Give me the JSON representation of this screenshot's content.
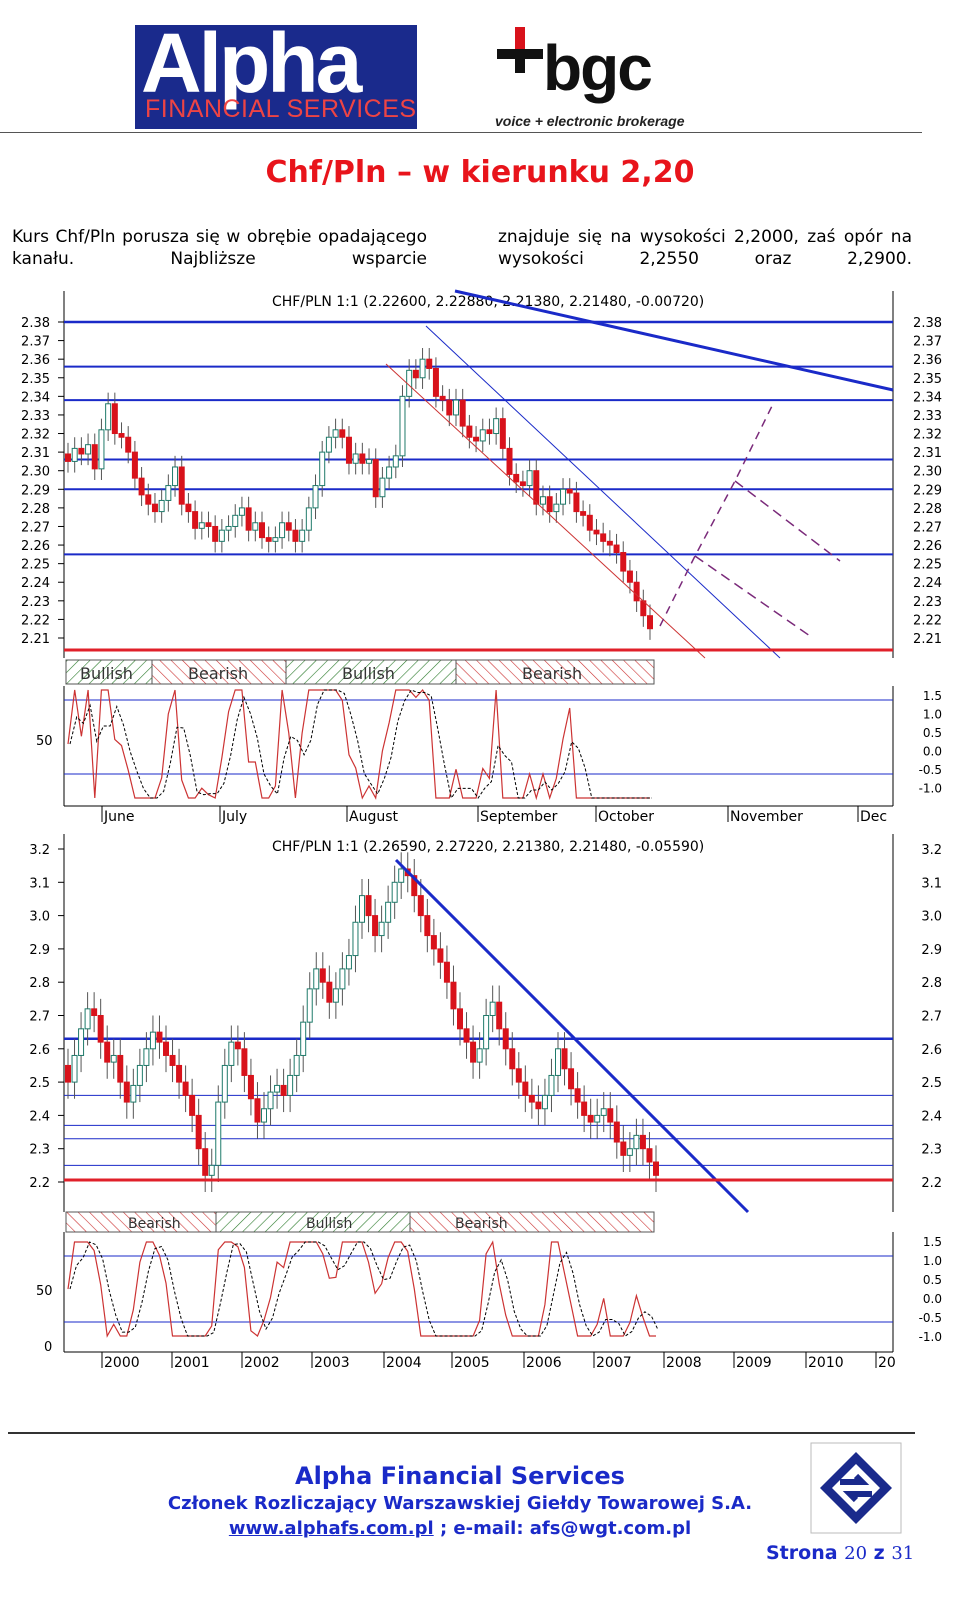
{
  "logos": {
    "alpha_big": "Alpha",
    "alpha_small": "FINANCIAL SERVICES",
    "bgc_word": "bgc",
    "bgc_tagline": "voice + electronic brokerage"
  },
  "title": "Chf/Pln – w kierunku 2,20",
  "body": {
    "col1": "Kurs Chf/Pln porusza się w obrębie opadającego kanału. Najbliższe wsparcie",
    "col2": "znajduje się na wysokości 2,2000, zaś opór na wysokości 2,2550 oraz 2,2900."
  },
  "chart_data": [
    {
      "type": "candlestick",
      "header": "CHF/PLN 1:1 (2.22600, 2.22880, 2.21380, 2.21480, -0.00720)",
      "y_ticks": [
        "2.38",
        "2.37",
        "2.36",
        "2.35",
        "2.34",
        "2.33",
        "2.32",
        "2.31",
        "2.30",
        "2.29",
        "2.28",
        "2.27",
        "2.26",
        "2.25",
        "2.24",
        "2.23",
        "2.22",
        "2.21"
      ],
      "x_labels": [
        "June",
        "July",
        "August",
        "September",
        "October",
        "November",
        "Dec"
      ],
      "support": 2.2,
      "horizontal_levels": [
        2.38,
        2.356,
        2.338,
        2.306,
        2.29,
        2.255
      ],
      "bias_bands": [
        "Bullish",
        "Bearish",
        "Bullish",
        "Bearish"
      ],
      "oscillator_left_ticks": [
        "50"
      ],
      "oscillator_right_ticks": [
        "1.5",
        "1.0",
        "0.5",
        "0.0",
        "-0.5",
        "-1.0"
      ],
      "closes": [
        2.305,
        2.312,
        2.309,
        2.314,
        2.301,
        2.322,
        2.336,
        2.32,
        2.318,
        2.31,
        2.296,
        2.287,
        2.282,
        2.278,
        2.284,
        2.292,
        2.302,
        2.282,
        2.278,
        2.269,
        2.272,
        2.27,
        2.262,
        2.268,
        2.27,
        2.276,
        2.28,
        2.268,
        2.272,
        2.264,
        2.262,
        2.264,
        2.272,
        2.268,
        2.262,
        2.268,
        2.28,
        2.292,
        2.31,
        2.318,
        2.322,
        2.318,
        2.304,
        2.309,
        2.304,
        2.306,
        2.286,
        2.296,
        2.302,
        2.308,
        2.34,
        2.354,
        2.35,
        2.36,
        2.355,
        2.34,
        2.338,
        2.33,
        2.338,
        2.324,
        2.318,
        2.316,
        2.322,
        2.32,
        2.328,
        2.312,
        2.298,
        2.294,
        2.292,
        2.3,
        2.282,
        2.286,
        2.278,
        2.282,
        2.29,
        2.288,
        2.278,
        2.276,
        2.268,
        2.266,
        2.262,
        2.26,
        2.256,
        2.246,
        2.24,
        2.23,
        2.222,
        2.215
      ]
    },
    {
      "type": "candlestick",
      "header": "CHF/PLN 1:1 (2.26590, 2.27220, 2.21380, 2.21480, -0.05590)",
      "y_ticks": [
        "3.2",
        "3.1",
        "3.0",
        "2.9",
        "2.8",
        "2.7",
        "2.6",
        "2.5",
        "2.4",
        "2.3",
        "2.2"
      ],
      "x_labels": [
        "2000",
        "2001",
        "2002",
        "2003",
        "2004",
        "2005",
        "2006",
        "2007",
        "2008",
        "2009",
        "2010",
        "20"
      ],
      "support": 2.2,
      "horizontal_levels": [
        2.63,
        2.46,
        2.37,
        2.33,
        2.25
      ],
      "bias_bands": [
        "Bearish",
        "Bullish",
        "Bearish"
      ],
      "oscillator_left_ticks": [
        "50",
        "0"
      ],
      "oscillator_right_ticks": [
        "1.5",
        "1.0",
        "0.5",
        "0.0",
        "-0.5",
        "-1.0"
      ],
      "closes": [
        2.5,
        2.58,
        2.66,
        2.72,
        2.7,
        2.62,
        2.56,
        2.58,
        2.5,
        2.44,
        2.49,
        2.55,
        2.6,
        2.65,
        2.62,
        2.58,
        2.55,
        2.5,
        2.46,
        2.4,
        2.3,
        2.22,
        2.25,
        2.44,
        2.55,
        2.62,
        2.6,
        2.52,
        2.45,
        2.38,
        2.42,
        2.47,
        2.49,
        2.46,
        2.52,
        2.58,
        2.68,
        2.78,
        2.84,
        2.8,
        2.74,
        2.78,
        2.84,
        2.88,
        2.98,
        3.06,
        3.0,
        2.94,
        2.98,
        3.04,
        3.1,
        3.14,
        3.12,
        3.06,
        3.0,
        2.94,
        2.9,
        2.86,
        2.8,
        2.72,
        2.66,
        2.62,
        2.56,
        2.6,
        2.7,
        2.74,
        2.66,
        2.6,
        2.54,
        2.5,
        2.46,
        2.44,
        2.42,
        2.46,
        2.52,
        2.6,
        2.54,
        2.48,
        2.44,
        2.4,
        2.38,
        2.4,
        2.42,
        2.38,
        2.32,
        2.28,
        2.3,
        2.34,
        2.3,
        2.26,
        2.22
      ]
    }
  ],
  "footer": {
    "company": "Alpha Financial Services",
    "member": "Członek Rozliczający Warszawskiej Giełdy Towarowej S.A.",
    "website": "www.alphafs.com.pl",
    "email_part": " ; e-mail: afs@wgt.com.pl",
    "page_prefix": "Strona ",
    "page_num": "20",
    "page_mid": " z ",
    "page_total": "31"
  }
}
